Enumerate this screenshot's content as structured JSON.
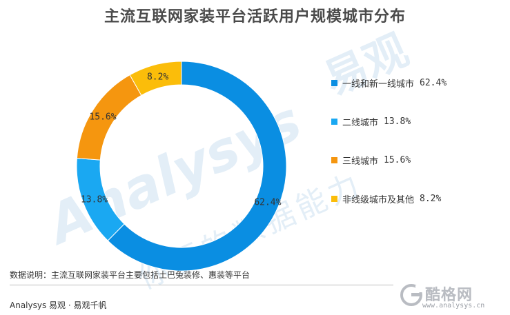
{
  "title": "主流互联网家装平台活跃用户规模城市分布",
  "watermark": {
    "latin": "Analysys",
    "cn_brand": "易观",
    "slogan": "你要的数据能力"
  },
  "colors": {
    "tier1": "#0a8ee2",
    "tier2": "#1aa8f2",
    "tier3": "#f5960f",
    "other": "#fbbd0a",
    "watermark": "#e3eef7"
  },
  "chart_data": {
    "type": "pie",
    "variant": "donut",
    "series": [
      {
        "name": "一线和新一线城市",
        "value": 62.4,
        "label": "62.4%"
      },
      {
        "name": "二线城市",
        "value": 13.8,
        "label": "13.8%"
      },
      {
        "name": "三线城市",
        "value": 15.6,
        "label": "15.6%"
      },
      {
        "name": "非线级城市及其他",
        "value": 8.2,
        "label": "8.2%"
      }
    ],
    "legend_placement": "right"
  },
  "note": "数据说明：主流互联网家装平台主要包括土巴兔装修、惠装等平台",
  "source": "Analysys 易观 · 易观千帆",
  "brand": {
    "name": "酷格网",
    "url": "www.analysys.cn"
  }
}
